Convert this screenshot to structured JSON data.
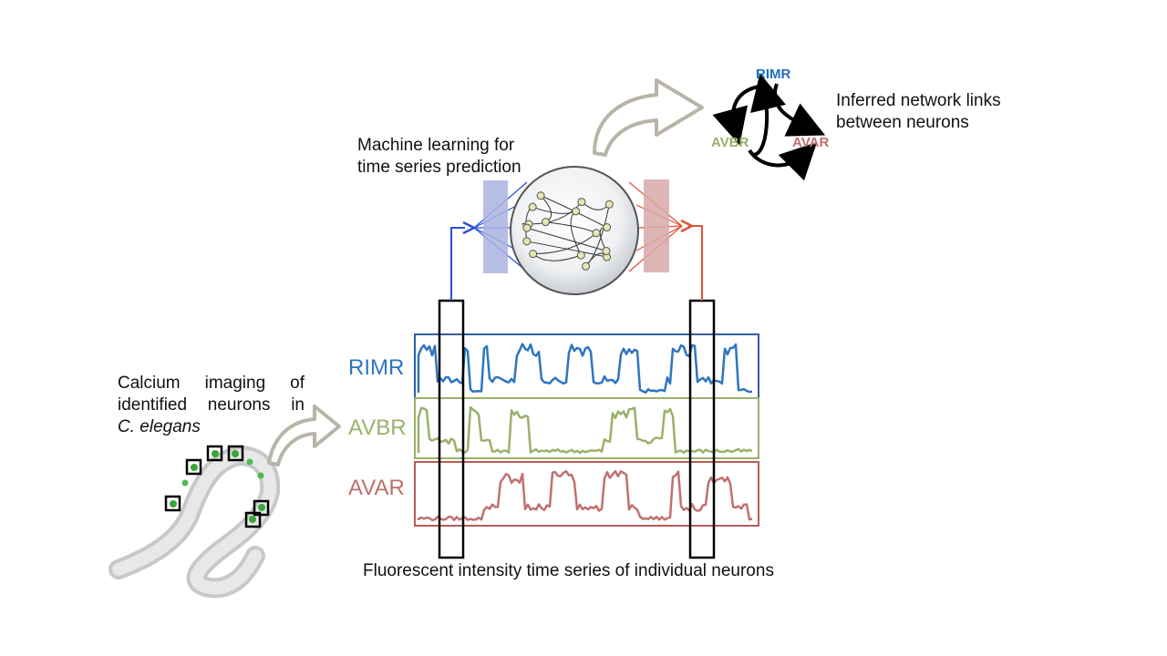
{
  "texts": {
    "calcium": {
      "line1": "Calcium imaging of",
      "line2": "identified neurons in",
      "line3": "C. elegans"
    },
    "ml": {
      "line1": "Machine learning for",
      "line2": "time series prediction"
    },
    "inferred": {
      "line1": "Inferred network links",
      "line2": "between neurons"
    },
    "caption": "Fluorescent intensity time series of individual neurons"
  },
  "neurons": [
    {
      "name": "RIMR",
      "color": "#2e75c0",
      "box_color": "#2f5f9e"
    },
    {
      "name": "AVBR",
      "color": "#9bb06a",
      "box_color": "#9bb06a"
    },
    {
      "name": "AVAR",
      "color": "#c07070",
      "box_color": "#b85a5a"
    }
  ],
  "network": {
    "nodes": [
      {
        "name": "RIMR",
        "color": "#1f70c0"
      },
      {
        "name": "AVBR",
        "color": "#9bb06a"
      },
      {
        "name": "AVAR",
        "color": "#c0706e"
      }
    ]
  },
  "colors": {
    "input": "#2b4fd6",
    "output": "#e0523a",
    "arrow": "#b8b4a8",
    "accent_blue_bar": "#aab3e0",
    "accent_red_bar": "#d8a8a8"
  }
}
